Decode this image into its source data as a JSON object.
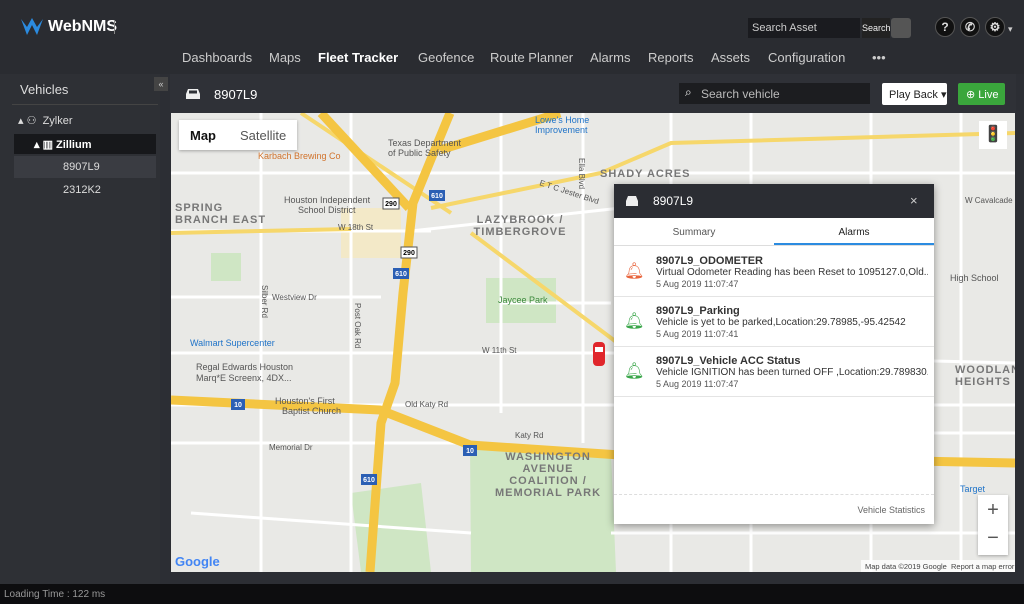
{
  "header": {
    "logo": "WebNMS",
    "search_placeholder": "Search Asset",
    "search_button": "Search"
  },
  "nav": [
    "Dashboards",
    "Maps",
    "Fleet Tracker",
    "Geofence",
    "Route Planner",
    "Alarms",
    "Reports",
    "Assets",
    "Configuration",
    "•••"
  ],
  "sidebar": {
    "title": "Vehicles",
    "groups": [
      "Zylker",
      "Zillium"
    ],
    "vehicles": [
      "8907L9",
      "2312K2"
    ]
  },
  "toolbar": {
    "vehicle": "8907L9",
    "search_placeholder": "Search vehicle",
    "playback": "Play Back",
    "live": "Live"
  },
  "map": {
    "controls": [
      "Map",
      "Satellite"
    ],
    "labels": [
      [
        "Lowe's Home",
        "Improvement"
      ],
      [
        "Texas Department",
        "of Public Safety"
      ],
      [
        "Karbach Brewing Co"
      ],
      [
        "SHADY ACRES"
      ],
      [
        "SPRING",
        "BRANCH EAST"
      ],
      [
        "Houston Independent",
        "School District"
      ],
      [
        "W 18th St"
      ],
      [
        "LAZYBROOK /",
        "TIMBERGROVE"
      ],
      [
        "Jaycee Park"
      ],
      [
        "Westview Dr"
      ],
      [
        "Walmart Supercenter"
      ],
      [
        "Regal Edwards Houston",
        "Marq*E Screenx, 4DX..."
      ],
      [
        "Houston's First",
        "Baptist Church"
      ],
      [
        "Old Katy Rd"
      ],
      [
        "W 11th St"
      ],
      [
        "Katy Rd"
      ],
      [
        "Memorial Dr"
      ],
      [
        "WASHINGTON",
        "AVENUE",
        "COALITION /",
        "MEMORIAL PARK"
      ],
      [
        "WOODLAND",
        "HEIGHTS"
      ],
      [
        "High School"
      ],
      [
        "W Cavalcade St"
      ],
      [
        "Target"
      ],
      [
        "Silber Rd"
      ],
      [
        "Post Oak Rd"
      ],
      [
        "Ella Blvd"
      ],
      [
        "E T C Jester Blvd"
      ]
    ],
    "shields": [
      "290",
      "610",
      "290",
      "610",
      "10",
      "10",
      "610"
    ],
    "attribution": "Map data ©2019 Google",
    "report": "Report a map error",
    "logo": "Google"
  },
  "popup": {
    "vehicle": "8907L9",
    "tabs": [
      "Summary",
      "Alarms"
    ],
    "alarms": [
      {
        "title": "8907L9_ODOMETER",
        "description": "Virtual Odometer Reading has been Reset to 1095127.0,Old...",
        "time": "5 Aug 2019 11:07:47",
        "color": "#e8643c"
      },
      {
        "title": "8907L9_Parking",
        "description": "Vehicle is yet to be parked,Location:29.78985,-95.42542",
        "time": "5 Aug 2019 11:07:41",
        "color": "#3aa64a"
      },
      {
        "title": "8907L9_Vehicle ACC Status",
        "description": "Vehicle IGNITION has been turned OFF ,Location:29.789830...",
        "time": "5 Aug 2019 11:07:47",
        "color": "#3aa64a"
      }
    ],
    "footer": "Vehicle Statistics"
  },
  "status_bar": {
    "loading_time": "Loading Time : 122 ms"
  }
}
